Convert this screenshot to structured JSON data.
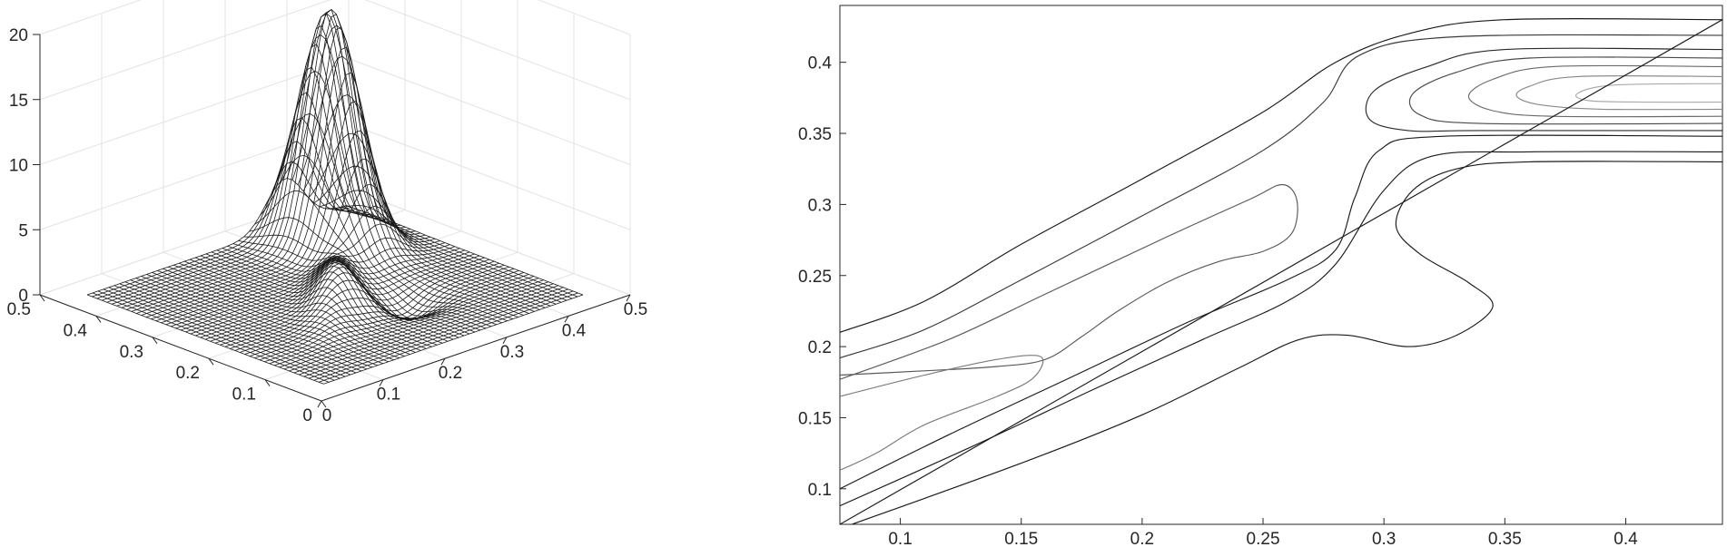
{
  "chart_data": [
    {
      "type": "surface",
      "title": "",
      "xlabel": "",
      "ylabel": "",
      "zlabel": "",
      "xlim": [
        0,
        0.5
      ],
      "ylim": [
        0,
        0.5
      ],
      "zlim": [
        0,
        20
      ],
      "x_ticks": [
        "0",
        "0.1",
        "0.2",
        "0.3",
        "0.4",
        "0.5"
      ],
      "y_ticks": [
        "0",
        "0.1",
        "0.2",
        "0.3",
        "0.4",
        "0.5"
      ],
      "z_ticks": [
        "0",
        "5",
        "10",
        "15",
        "20"
      ],
      "grid": true,
      "style": "black wireframe mesh",
      "surface_peaks": [
        {
          "x": 0.36,
          "y": 0.38,
          "z": 18
        },
        {
          "x": 0.24,
          "y": 0.2,
          "z": 3
        }
      ]
    },
    {
      "type": "contour",
      "title": "",
      "xlabel": "",
      "ylabel": "",
      "xlim": [
        0.075,
        0.44
      ],
      "ylim": [
        0.075,
        0.44
      ],
      "x_ticks": [
        "0.1",
        "0.15",
        "0.2",
        "0.25",
        "0.3",
        "0.35",
        "0.4"
      ],
      "y_ticks": [
        "0.1",
        "0.15",
        "0.2",
        "0.25",
        "0.3",
        "0.35",
        "0.4"
      ],
      "grid": false,
      "diagonal_line": [
        [
          0.075,
          0.075
        ],
        [
          0.44,
          0.43
        ]
      ],
      "contours": [
        {
          "color": "#1a1a1a",
          "points": [
            [
              0.075,
              0.21
            ],
            [
              0.11,
              0.232
            ],
            [
              0.15,
              0.272
            ],
            [
              0.2,
              0.318
            ],
            [
              0.25,
              0.365
            ],
            [
              0.28,
              0.4
            ],
            [
              0.31,
              0.42
            ],
            [
              0.35,
              0.43
            ],
            [
              0.44,
              0.43
            ]
          ]
        },
        {
          "color": "#3a3a3a",
          "points": [
            [
              0.075,
              0.192
            ],
            [
              0.11,
              0.212
            ],
            [
              0.15,
              0.247
            ],
            [
              0.2,
              0.292
            ],
            [
              0.25,
              0.338
            ],
            [
              0.275,
              0.372
            ],
            [
              0.29,
              0.405
            ],
            [
              0.33,
              0.418
            ],
            [
              0.44,
              0.419
            ]
          ]
        },
        {
          "color": "#5a5a5a",
          "points": [
            [
              0.075,
              0.177
            ],
            [
              0.12,
              0.205
            ],
            [
              0.16,
              0.237
            ],
            [
              0.21,
              0.277
            ],
            [
              0.245,
              0.304
            ],
            [
              0.258,
              0.314
            ],
            [
              0.264,
              0.303
            ],
            [
              0.262,
              0.28
            ],
            [
              0.25,
              0.267
            ],
            [
              0.232,
              0.26
            ],
            [
              0.21,
              0.245
            ],
            [
              0.19,
              0.225
            ],
            [
              0.175,
              0.207
            ],
            [
              0.16,
              0.191
            ],
            [
              0.14,
              0.186
            ],
            [
              0.11,
              0.183
            ],
            [
              0.075,
              0.18
            ]
          ]
        },
        {
          "color": "#7a7a7a",
          "points": [
            [
              0.075,
              0.165
            ],
            [
              0.11,
              0.18
            ],
            [
              0.14,
              0.191
            ],
            [
              0.158,
              0.193
            ],
            [
              0.155,
              0.178
            ],
            [
              0.14,
              0.165
            ],
            [
              0.11,
              0.145
            ],
            [
              0.09,
              0.125
            ],
            [
              0.075,
              0.113
            ]
          ]
        },
        {
          "color": "#1a1a1a",
          "points": [
            [
              0.075,
              0.1
            ],
            [
              0.12,
              0.138
            ],
            [
              0.17,
              0.178
            ],
            [
              0.22,
              0.218
            ],
            [
              0.26,
              0.247
            ],
            [
              0.28,
              0.268
            ],
            [
              0.288,
              0.305
            ],
            [
              0.298,
              0.338
            ],
            [
              0.325,
              0.348
            ],
            [
              0.44,
              0.348
            ]
          ]
        },
        {
          "color": "#1a1a1a",
          "points": [
            [
              0.075,
              0.088
            ],
            [
              0.13,
              0.13
            ],
            [
              0.18,
              0.17
            ],
            [
              0.225,
              0.205
            ],
            [
              0.26,
              0.232
            ],
            [
              0.28,
              0.258
            ],
            [
              0.3,
              0.31
            ],
            [
              0.32,
              0.334
            ],
            [
              0.36,
              0.337
            ],
            [
              0.44,
              0.337
            ]
          ]
        },
        {
          "color": "#1a1a1a",
          "points": [
            [
              0.08,
              0.075
            ],
            [
              0.15,
              0.118
            ],
            [
              0.2,
              0.152
            ],
            [
              0.24,
              0.185
            ],
            [
              0.265,
              0.205
            ],
            [
              0.285,
              0.208
            ],
            [
              0.31,
              0.2
            ],
            [
              0.33,
              0.208
            ],
            [
              0.345,
              0.228
            ],
            [
              0.335,
              0.245
            ],
            [
              0.315,
              0.265
            ],
            [
              0.305,
              0.285
            ],
            [
              0.312,
              0.31
            ],
            [
              0.33,
              0.325
            ],
            [
              0.36,
              0.33
            ],
            [
              0.44,
              0.33
            ]
          ]
        },
        {
          "color": "#2a2a2a",
          "points": [
            [
              0.44,
              0.409
            ],
            [
              0.35,
              0.409
            ],
            [
              0.318,
              0.397
            ],
            [
              0.296,
              0.38
            ],
            [
              0.294,
              0.36
            ],
            [
              0.31,
              0.352
            ],
            [
              0.34,
              0.352
            ],
            [
              0.44,
              0.352
            ]
          ]
        },
        {
          "color": "#4a4a4a",
          "points": [
            [
              0.44,
              0.403
            ],
            [
              0.36,
              0.403
            ],
            [
              0.33,
              0.393
            ],
            [
              0.312,
              0.378
            ],
            [
              0.315,
              0.363
            ],
            [
              0.34,
              0.357
            ],
            [
              0.44,
              0.357
            ]
          ]
        },
        {
          "color": "#6a6a6a",
          "points": [
            [
              0.44,
              0.397
            ],
            [
              0.37,
              0.397
            ],
            [
              0.345,
              0.388
            ],
            [
              0.335,
              0.376
            ],
            [
              0.345,
              0.366
            ],
            [
              0.37,
              0.362
            ],
            [
              0.44,
              0.362
            ]
          ]
        },
        {
          "color": "#8a8a8a",
          "points": [
            [
              0.44,
              0.39
            ],
            [
              0.38,
              0.39
            ],
            [
              0.36,
              0.383
            ],
            [
              0.355,
              0.376
            ],
            [
              0.365,
              0.37
            ],
            [
              0.39,
              0.367
            ],
            [
              0.44,
              0.367
            ]
          ]
        },
        {
          "color": "#aaaaaa",
          "points": [
            [
              0.44,
              0.385
            ],
            [
              0.395,
              0.384
            ],
            [
              0.38,
              0.378
            ],
            [
              0.385,
              0.373
            ],
            [
              0.41,
              0.372
            ],
            [
              0.44,
              0.372
            ]
          ]
        }
      ]
    }
  ]
}
